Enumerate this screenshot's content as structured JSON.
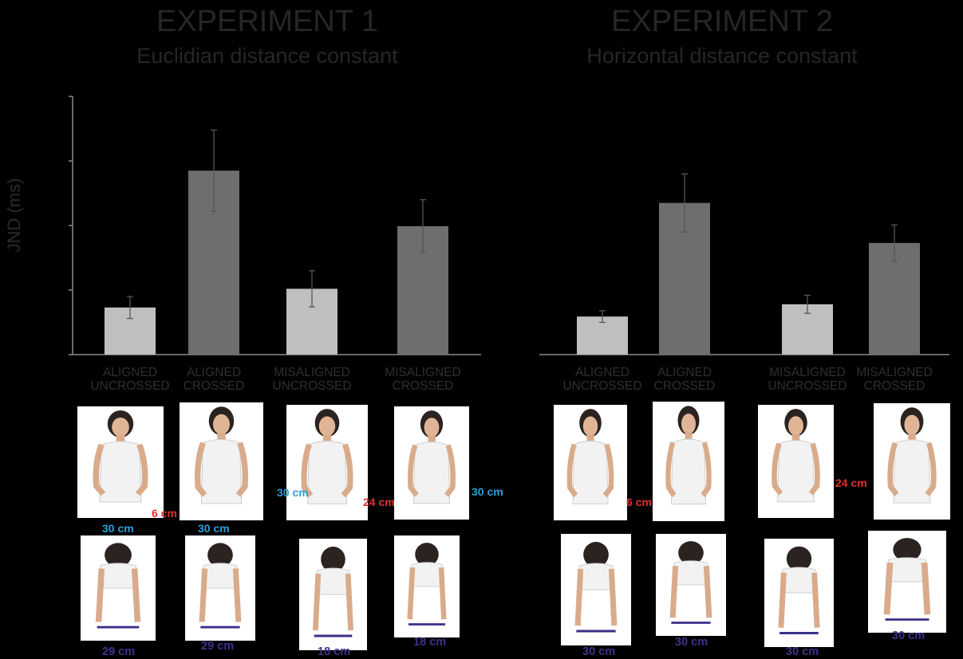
{
  "chart_data": [
    {
      "type": "bar",
      "title": "EXPERIMENT 1",
      "subtitle": "Euclidian distance constant",
      "ylabel": "JND (ms)",
      "ylim": [
        0,
        4
      ],
      "categories": [
        [
          "ALIGNED",
          "UNCROSSED"
        ],
        [
          "ALIGNED",
          "CROSSED"
        ],
        [
          "MISALIGNED",
          "UNCROSSED"
        ],
        [
          "MISALIGNED",
          "CROSSED"
        ]
      ],
      "values": [
        0.73,
        2.85,
        1.02,
        1.99
      ],
      "errors": [
        0.17,
        0.63,
        0.28,
        0.41
      ],
      "colors": [
        "#bfbfbf",
        "#6e6e6e",
        "#bfbfbf",
        "#6e6e6e"
      ],
      "grid": false
    },
    {
      "type": "bar",
      "title": "EXPERIMENT 2",
      "subtitle": "Horizontal distance constant",
      "ylabel": "",
      "ylim": [
        0,
        4
      ],
      "categories": [
        [
          "ALIGNED",
          "UNCROSSED"
        ],
        [
          "ALIGNED",
          "CROSSED"
        ],
        [
          "MISALIGNED",
          "UNCROSSED"
        ],
        [
          "MISALIGNED",
          "CROSSED"
        ]
      ],
      "values": [
        0.59,
        2.35,
        0.78,
        1.73
      ],
      "errors": [
        0.09,
        0.45,
        0.14,
        0.28
      ],
      "colors": [
        "#bfbfbf",
        "#6e6e6e",
        "#bfbfbf",
        "#6e6e6e"
      ],
      "grid": false
    }
  ],
  "illustrations": {
    "exp1_front": [
      {
        "labels": [
          {
            "text": "6 cm",
            "color": "red"
          },
          {
            "text": "30 cm",
            "color": "blue"
          }
        ]
      },
      {
        "labels": [
          {
            "text": "30 cm",
            "color": "blue"
          }
        ]
      },
      {
        "labels": [
          {
            "text": "30 cm",
            "color": "blue"
          },
          {
            "text": "24 cm",
            "color": "red"
          }
        ]
      },
      {
        "labels": [
          {
            "text": "30 cm",
            "color": "blue"
          }
        ]
      }
    ],
    "exp1_top": [
      "29 cm",
      "29 cm",
      "18 cm",
      "18 cm"
    ],
    "exp2_front": [
      {
        "labels": [
          {
            "text": "6 cm",
            "color": "red"
          }
        ]
      },
      {
        "labels": []
      },
      {
        "labels": [
          {
            "text": "24 cm",
            "color": "red"
          }
        ]
      },
      {
        "labels": []
      }
    ],
    "exp2_top": [
      "30 cm",
      "30 cm",
      "30 cm",
      "30 cm"
    ]
  }
}
